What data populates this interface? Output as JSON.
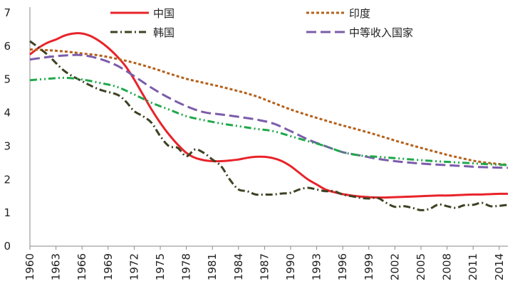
{
  "chart_data": {
    "type": "line",
    "title": "",
    "xlabel": "",
    "ylabel": "",
    "ylim": [
      0,
      7
    ],
    "yticks": [
      0,
      1,
      2,
      3,
      4,
      5,
      6,
      7
    ],
    "xlim": [
      1960,
      2015
    ],
    "xticks": [
      1960,
      1963,
      1966,
      1969,
      1972,
      1975,
      1978,
      1981,
      1984,
      1987,
      1990,
      1993,
      1996,
      1999,
      2002,
      2005,
      2008,
      2011,
      2014
    ],
    "grid": false,
    "legend_position": "top",
    "series": [
      {
        "name": "中国",
        "color": "#e8232a",
        "dash": "solid",
        "points": [
          [
            1960,
            5.75
          ],
          [
            1961,
            5.95
          ],
          [
            1962,
            6.1
          ],
          [
            1963,
            6.2
          ],
          [
            1964,
            6.32
          ],
          [
            1965,
            6.38
          ],
          [
            1966,
            6.38
          ],
          [
            1967,
            6.3
          ],
          [
            1968,
            6.15
          ],
          [
            1969,
            5.95
          ],
          [
            1970,
            5.7
          ],
          [
            1971,
            5.4
          ],
          [
            1972,
            5.0
          ],
          [
            1973,
            4.55
          ],
          [
            1974,
            4.1
          ],
          [
            1975,
            3.7
          ],
          [
            1976,
            3.35
          ],
          [
            1977,
            3.05
          ],
          [
            1978,
            2.8
          ],
          [
            1979,
            2.65
          ],
          [
            1980,
            2.58
          ],
          [
            1981,
            2.55
          ],
          [
            1982,
            2.55
          ],
          [
            1983,
            2.57
          ],
          [
            1984,
            2.6
          ],
          [
            1985,
            2.65
          ],
          [
            1986,
            2.68
          ],
          [
            1987,
            2.68
          ],
          [
            1988,
            2.64
          ],
          [
            1989,
            2.55
          ],
          [
            1990,
            2.4
          ],
          [
            1991,
            2.2
          ],
          [
            1992,
            2.0
          ],
          [
            1993,
            1.85
          ],
          [
            1994,
            1.7
          ],
          [
            1995,
            1.62
          ],
          [
            1996,
            1.56
          ],
          [
            1997,
            1.52
          ],
          [
            1998,
            1.49
          ],
          [
            1999,
            1.47
          ],
          [
            2000,
            1.46
          ],
          [
            2001,
            1.46
          ],
          [
            2002,
            1.47
          ],
          [
            2003,
            1.48
          ],
          [
            2004,
            1.49
          ],
          [
            2005,
            1.5
          ],
          [
            2006,
            1.51
          ],
          [
            2007,
            1.52
          ],
          [
            2008,
            1.52
          ],
          [
            2009,
            1.53
          ],
          [
            2010,
            1.54
          ],
          [
            2011,
            1.55
          ],
          [
            2012,
            1.55
          ],
          [
            2013,
            1.56
          ],
          [
            2014,
            1.57
          ],
          [
            2015,
            1.57
          ]
        ]
      },
      {
        "name": "印度",
        "color": "#b5601a",
        "dash": "short",
        "points": [
          [
            1960,
            5.9
          ],
          [
            1962,
            5.88
          ],
          [
            1964,
            5.84
          ],
          [
            1966,
            5.78
          ],
          [
            1968,
            5.72
          ],
          [
            1970,
            5.62
          ],
          [
            1972,
            5.5
          ],
          [
            1974,
            5.35
          ],
          [
            1976,
            5.18
          ],
          [
            1978,
            5.02
          ],
          [
            1980,
            4.9
          ],
          [
            1982,
            4.78
          ],
          [
            1984,
            4.65
          ],
          [
            1986,
            4.5
          ],
          [
            1988,
            4.3
          ],
          [
            1990,
            4.1
          ],
          [
            1992,
            3.93
          ],
          [
            1994,
            3.77
          ],
          [
            1996,
            3.62
          ],
          [
            1998,
            3.48
          ],
          [
            2000,
            3.33
          ],
          [
            2002,
            3.17
          ],
          [
            2004,
            3.02
          ],
          [
            2006,
            2.88
          ],
          [
            2008,
            2.74
          ],
          [
            2010,
            2.62
          ],
          [
            2012,
            2.52
          ],
          [
            2015,
            2.44
          ]
        ]
      },
      {
        "name": "韩国",
        "color": "#3d4223",
        "dash": "dashdot",
        "points": [
          [
            1960,
            6.15
          ],
          [
            1962,
            5.75
          ],
          [
            1964,
            5.25
          ],
          [
            1966,
            4.95
          ],
          [
            1968,
            4.7
          ],
          [
            1970,
            4.55
          ],
          [
            1971,
            4.35
          ],
          [
            1972,
            4.05
          ],
          [
            1973,
            3.9
          ],
          [
            1974,
            3.7
          ],
          [
            1975,
            3.3
          ],
          [
            1976,
            3.0
          ],
          [
            1977,
            2.95
          ],
          [
            1978,
            2.7
          ],
          [
            1979,
            2.9
          ],
          [
            1980,
            2.8
          ],
          [
            1981,
            2.6
          ],
          [
            1982,
            2.4
          ],
          [
            1983,
            2.0
          ],
          [
            1984,
            1.7
          ],
          [
            1985,
            1.65
          ],
          [
            1986,
            1.55
          ],
          [
            1987,
            1.55
          ],
          [
            1988,
            1.55
          ],
          [
            1989,
            1.58
          ],
          [
            1990,
            1.6
          ],
          [
            1991,
            1.7
          ],
          [
            1992,
            1.75
          ],
          [
            1993,
            1.7
          ],
          [
            1994,
            1.65
          ],
          [
            1995,
            1.65
          ],
          [
            1996,
            1.55
          ],
          [
            1997,
            1.5
          ],
          [
            1998,
            1.45
          ],
          [
            1999,
            1.43
          ],
          [
            2000,
            1.45
          ],
          [
            2001,
            1.3
          ],
          [
            2002,
            1.18
          ],
          [
            2003,
            1.2
          ],
          [
            2004,
            1.15
          ],
          [
            2005,
            1.08
          ],
          [
            2006,
            1.12
          ],
          [
            2007,
            1.25
          ],
          [
            2008,
            1.2
          ],
          [
            2009,
            1.15
          ],
          [
            2010,
            1.23
          ],
          [
            2011,
            1.24
          ],
          [
            2012,
            1.3
          ],
          [
            2013,
            1.2
          ],
          [
            2014,
            1.21
          ],
          [
            2015,
            1.24
          ]
        ]
      },
      {
        "name": "中等收入国家",
        "color": "#7b5cab",
        "dash": "long",
        "points": [
          [
            1960,
            5.6
          ],
          [
            1962,
            5.67
          ],
          [
            1964,
            5.72
          ],
          [
            1966,
            5.73
          ],
          [
            1968,
            5.62
          ],
          [
            1970,
            5.42
          ],
          [
            1972,
            5.1
          ],
          [
            1974,
            4.75
          ],
          [
            1976,
            4.45
          ],
          [
            1978,
            4.2
          ],
          [
            1980,
            4.02
          ],
          [
            1982,
            3.95
          ],
          [
            1984,
            3.88
          ],
          [
            1986,
            3.8
          ],
          [
            1988,
            3.68
          ],
          [
            1990,
            3.45
          ],
          [
            1992,
            3.2
          ],
          [
            1994,
            3.0
          ],
          [
            1996,
            2.82
          ],
          [
            1998,
            2.72
          ],
          [
            2000,
            2.62
          ],
          [
            2002,
            2.55
          ],
          [
            2004,
            2.5
          ],
          [
            2006,
            2.46
          ],
          [
            2008,
            2.43
          ],
          [
            2010,
            2.4
          ],
          [
            2012,
            2.37
          ],
          [
            2015,
            2.35
          ]
        ]
      },
      {
        "name": "",
        "color": "#1fa84a",
        "dash": "dashdotdot",
        "points": [
          [
            1960,
            4.98
          ],
          [
            1962,
            5.02
          ],
          [
            1964,
            5.05
          ],
          [
            1966,
            5.0
          ],
          [
            1968,
            4.9
          ],
          [
            1970,
            4.78
          ],
          [
            1972,
            4.55
          ],
          [
            1974,
            4.3
          ],
          [
            1976,
            4.1
          ],
          [
            1978,
            3.9
          ],
          [
            1980,
            3.78
          ],
          [
            1982,
            3.68
          ],
          [
            1984,
            3.6
          ],
          [
            1986,
            3.52
          ],
          [
            1988,
            3.45
          ],
          [
            1990,
            3.3
          ],
          [
            1992,
            3.15
          ],
          [
            1994,
            3.0
          ],
          [
            1996,
            2.82
          ],
          [
            1998,
            2.72
          ],
          [
            2000,
            2.68
          ],
          [
            2002,
            2.64
          ],
          [
            2004,
            2.6
          ],
          [
            2006,
            2.56
          ],
          [
            2008,
            2.53
          ],
          [
            2010,
            2.5
          ],
          [
            2012,
            2.47
          ],
          [
            2015,
            2.43
          ]
        ]
      }
    ]
  }
}
